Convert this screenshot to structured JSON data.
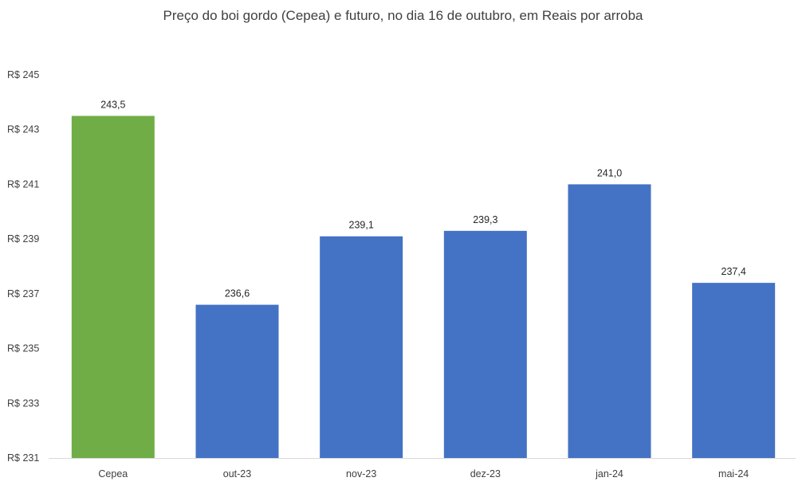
{
  "chart_data": {
    "type": "bar",
    "title": "Preço do boi gordo (Cepea) e futuro, no dia 16 de outubro, em Reais por arroba",
    "categories": [
      "Cepea",
      "out-23",
      "nov-23",
      "dez-23",
      "jan-24",
      "mai-24"
    ],
    "values": [
      243.5,
      236.6,
      239.1,
      239.3,
      241.0,
      237.4
    ],
    "data_labels": [
      "243,5",
      "236,6",
      "239,1",
      "239,3",
      "241,0",
      "237,4"
    ],
    "bar_colors": [
      "#70AD47",
      "#4472C4",
      "#4472C4",
      "#4472C4",
      "#4472C4",
      "#4472C4"
    ],
    "ylim": [
      231,
      245
    ],
    "yticks": [
      231,
      233,
      235,
      237,
      239,
      241,
      243,
      245
    ],
    "ytick_labels": [
      "R$ 231",
      "R$ 233",
      "R$ 235",
      "R$ 237",
      "R$ 239",
      "R$ 241",
      "R$ 243",
      "R$ 245"
    ],
    "xlabel": "",
    "ylabel": "",
    "grid": false,
    "legend": "none"
  }
}
